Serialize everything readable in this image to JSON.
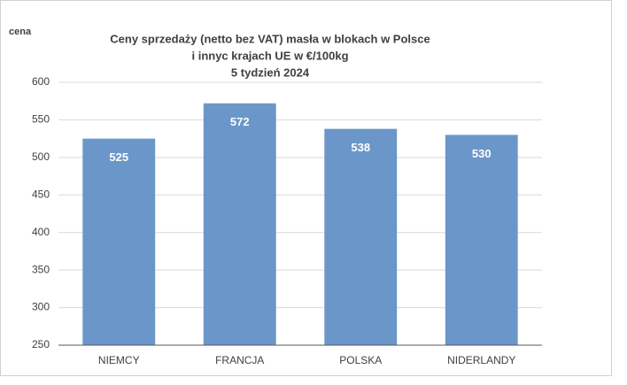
{
  "chart_data": {
    "type": "bar",
    "title": [
      "Ceny sprzedaży (netto bez VAT) masła w blokach w Polsce",
      "i  innyc krajach UE w €/100kg",
      "5 tydzień 2024"
    ],
    "y_label": "cena",
    "categories": [
      "NIEMCY",
      "FRANCJA",
      "POLSKA",
      "NIDERLANDY"
    ],
    "values": [
      525,
      572,
      538,
      530
    ],
    "color": "#6b96c9",
    "ylim": [
      250,
      600
    ],
    "yticks": [
      250,
      300,
      350,
      400,
      450,
      500,
      550,
      600
    ],
    "grid": true
  }
}
